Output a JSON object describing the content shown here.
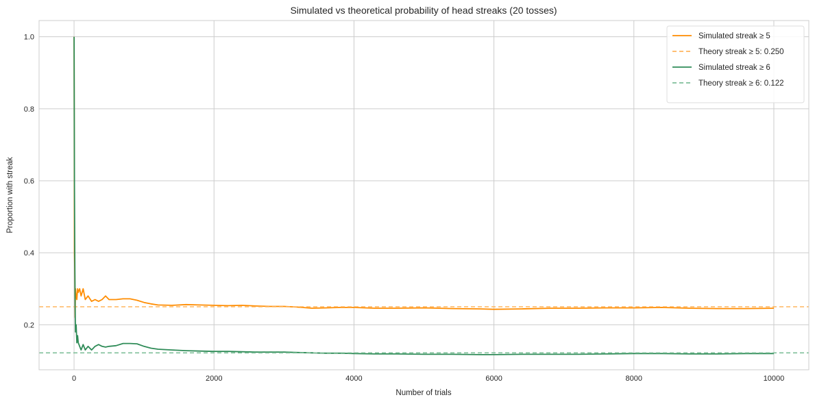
{
  "chart_data": {
    "type": "line",
    "title": "Simulated vs theoretical probability of head streaks (20 tosses)",
    "xlabel": "Number of trials",
    "ylabel": "Proportion with streak",
    "xlim": [
      -500,
      10500
    ],
    "ylim": [
      0.075,
      1.045
    ],
    "xticks": [
      0,
      2000,
      4000,
      6000,
      8000,
      10000
    ],
    "xtick_labels": [
      "0",
      "2000",
      "4000",
      "6000",
      "8000",
      "10000"
    ],
    "yticks": [
      0.2,
      0.4,
      0.6,
      0.8,
      1.0
    ],
    "ytick_labels": [
      "0.2",
      "0.4",
      "0.6",
      "0.8",
      "1.0"
    ],
    "grid": true,
    "legend_position": "top-right",
    "series": [
      {
        "name": "Simulated streak ≥ 5",
        "color": "#ff8c00",
        "style": "solid",
        "x": [
          1,
          5,
          10,
          15,
          20,
          30,
          40,
          50,
          60,
          80,
          100,
          130,
          160,
          200,
          250,
          300,
          350,
          400,
          450,
          500,
          600,
          700,
          800,
          900,
          1000,
          1100,
          1200,
          1400,
          1600,
          1800,
          2000,
          2200,
          2400,
          2600,
          2800,
          3000,
          3200,
          3400,
          3600,
          3800,
          4000,
          4300,
          4600,
          5000,
          5400,
          5800,
          6000,
          6400,
          6800,
          7200,
          7600,
          8000,
          8400,
          8800,
          9200,
          9600,
          10000
        ],
        "values": [
          1.0,
          0.4,
          0.35,
          0.22,
          0.3,
          0.28,
          0.27,
          0.3,
          0.29,
          0.3,
          0.28,
          0.3,
          0.27,
          0.28,
          0.265,
          0.27,
          0.265,
          0.27,
          0.28,
          0.27,
          0.27,
          0.272,
          0.272,
          0.268,
          0.262,
          0.258,
          0.255,
          0.254,
          0.256,
          0.255,
          0.254,
          0.253,
          0.254,
          0.252,
          0.251,
          0.251,
          0.249,
          0.246,
          0.247,
          0.248,
          0.248,
          0.246,
          0.246,
          0.247,
          0.245,
          0.244,
          0.243,
          0.244,
          0.246,
          0.246,
          0.247,
          0.247,
          0.248,
          0.246,
          0.245,
          0.245,
          0.246
        ]
      },
      {
        "name": "Theory streak ≥ 5: 0.250",
        "color": "#ffb55f",
        "style": "dashed",
        "value": 0.25
      },
      {
        "name": "Simulated streak ≥ 6",
        "color": "#2e8b57",
        "style": "solid",
        "x": [
          1,
          5,
          10,
          15,
          20,
          30,
          40,
          50,
          60,
          80,
          100,
          130,
          160,
          200,
          250,
          300,
          350,
          400,
          450,
          500,
          600,
          700,
          800,
          900,
          1000,
          1100,
          1200,
          1400,
          1600,
          1800,
          2000,
          2200,
          2400,
          2600,
          2800,
          3000,
          3200,
          3400,
          3600,
          3800,
          4000,
          4300,
          4600,
          5000,
          5400,
          5800,
          6000,
          6400,
          6800,
          7200,
          7600,
          8000,
          8400,
          8800,
          9200,
          9600,
          10000
        ],
        "values": [
          1.0,
          0.6,
          0.4,
          0.25,
          0.18,
          0.2,
          0.15,
          0.17,
          0.15,
          0.14,
          0.13,
          0.145,
          0.13,
          0.14,
          0.13,
          0.14,
          0.145,
          0.14,
          0.138,
          0.14,
          0.142,
          0.148,
          0.148,
          0.147,
          0.14,
          0.135,
          0.132,
          0.13,
          0.128,
          0.127,
          0.126,
          0.126,
          0.125,
          0.124,
          0.124,
          0.124,
          0.123,
          0.122,
          0.121,
          0.121,
          0.12,
          0.119,
          0.119,
          0.118,
          0.118,
          0.117,
          0.117,
          0.118,
          0.118,
          0.118,
          0.119,
          0.12,
          0.12,
          0.119,
          0.119,
          0.12,
          0.12
        ]
      },
      {
        "name": "Theory streak ≥ 6: 0.122",
        "color": "#7fbf99",
        "style": "dashed",
        "value": 0.122
      }
    ]
  }
}
